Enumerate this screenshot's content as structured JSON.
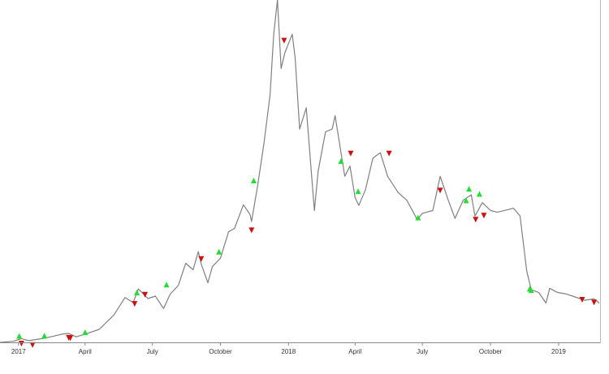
{
  "chart_data": {
    "type": "line",
    "title": "",
    "xlabel": "",
    "ylabel": "",
    "x_range": [
      "2016-12-07",
      "2019-02-25"
    ],
    "y_range": [
      0,
      100
    ],
    "y_axis_shown": false,
    "grid": false,
    "legend": "none",
    "x_ticks": [
      {
        "date": "2017-01-01",
        "label": "2017"
      },
      {
        "date": "2017-04-01",
        "label": "April"
      },
      {
        "date": "2017-07-01",
        "label": "July"
      },
      {
        "date": "2017-10-01",
        "label": "October"
      },
      {
        "date": "2018-01-01",
        "label": "2018"
      },
      {
        "date": "2018-04-01",
        "label": "April"
      },
      {
        "date": "2018-07-01",
        "label": "July"
      },
      {
        "date": "2018-10-01",
        "label": "October"
      },
      {
        "date": "2019-01-01",
        "label": "2019"
      }
    ],
    "series": [
      {
        "color": "#808080",
        "points": [
          [
            "2016-12-07",
            0.0
          ],
          [
            "2016-12-25",
            0.3
          ],
          [
            "2017-01-05",
            1.1
          ],
          [
            "2017-01-15",
            0.5
          ],
          [
            "2017-02-05",
            1.2
          ],
          [
            "2017-03-01",
            2.4
          ],
          [
            "2017-03-10",
            2.6
          ],
          [
            "2017-03-20",
            1.6
          ],
          [
            "2017-04-01",
            2.4
          ],
          [
            "2017-04-20",
            3.8
          ],
          [
            "2017-05-10",
            8.0
          ],
          [
            "2017-05-25",
            13.1
          ],
          [
            "2017-06-05",
            11.6
          ],
          [
            "2017-06-12",
            15.6
          ],
          [
            "2017-06-25",
            12.8
          ],
          [
            "2017-07-05",
            13.5
          ],
          [
            "2017-07-16",
            9.9
          ],
          [
            "2017-07-25",
            14.1
          ],
          [
            "2017-08-05",
            16.6
          ],
          [
            "2017-08-15",
            23.1
          ],
          [
            "2017-08-25",
            21.2
          ],
          [
            "2017-09-01",
            26.5
          ],
          [
            "2017-09-05",
            22.9
          ],
          [
            "2017-09-14",
            17.4
          ],
          [
            "2017-09-20",
            22.1
          ],
          [
            "2017-10-01",
            24.6
          ],
          [
            "2017-10-12",
            32.3
          ],
          [
            "2017-10-20",
            33.3
          ],
          [
            "2017-11-01",
            40.2
          ],
          [
            "2017-11-10",
            37.3
          ],
          [
            "2017-11-12",
            35.3
          ],
          [
            "2017-11-20",
            45.5
          ],
          [
            "2017-11-29",
            58.5
          ],
          [
            "2017-12-07",
            72.3
          ],
          [
            "2017-12-12",
            90.0
          ],
          [
            "2017-12-17",
            100.0
          ],
          [
            "2017-12-22",
            80.0
          ],
          [
            "2017-12-27",
            84.6
          ],
          [
            "2018-01-06",
            90.0
          ],
          [
            "2018-01-10",
            83.1
          ],
          [
            "2018-01-16",
            62.3
          ],
          [
            "2018-01-25",
            68.5
          ],
          [
            "2018-02-01",
            49.2
          ],
          [
            "2018-02-05",
            38.5
          ],
          [
            "2018-02-10",
            50.0
          ],
          [
            "2018-02-20",
            61.5
          ],
          [
            "2018-03-01",
            62.3
          ],
          [
            "2018-03-05",
            66.2
          ],
          [
            "2018-03-18",
            48.5
          ],
          [
            "2018-03-25",
            51.5
          ],
          [
            "2018-04-01",
            42.3
          ],
          [
            "2018-04-06",
            40.0
          ],
          [
            "2018-04-15",
            44.6
          ],
          [
            "2018-04-25",
            53.8
          ],
          [
            "2018-05-05",
            55.4
          ],
          [
            "2018-05-15",
            48.5
          ],
          [
            "2018-05-29",
            43.8
          ],
          [
            "2018-06-10",
            41.5
          ],
          [
            "2018-06-24",
            35.8
          ],
          [
            "2018-07-01",
            37.7
          ],
          [
            "2018-07-15",
            38.5
          ],
          [
            "2018-07-25",
            48.5
          ],
          [
            "2018-08-05",
            41.5
          ],
          [
            "2018-08-14",
            36.2
          ],
          [
            "2018-08-25",
            41.5
          ],
          [
            "2018-09-05",
            43.1
          ],
          [
            "2018-09-10",
            36.9
          ],
          [
            "2018-09-20",
            40.8
          ],
          [
            "2018-10-01",
            38.5
          ],
          [
            "2018-10-10",
            38.0
          ],
          [
            "2018-10-25",
            38.8
          ],
          [
            "2018-11-01",
            39.2
          ],
          [
            "2018-11-10",
            36.9
          ],
          [
            "2018-11-19",
            20.8
          ],
          [
            "2018-11-25",
            15.4
          ],
          [
            "2018-12-05",
            14.6
          ],
          [
            "2018-12-15",
            11.5
          ],
          [
            "2018-12-20",
            15.8
          ],
          [
            "2018-12-30",
            14.6
          ],
          [
            "2019-01-10",
            14.2
          ],
          [
            "2019-01-20",
            13.5
          ],
          [
            "2019-02-05",
            12.3
          ],
          [
            "2019-02-18",
            12.7
          ],
          [
            "2019-02-25",
            11.5
          ]
        ]
      }
    ],
    "markers": [
      {
        "date": "2017-01-02",
        "value": 0.8,
        "kind": "buy",
        "color": "#22dd33"
      },
      {
        "date": "2017-01-05",
        "value": 0.7,
        "kind": "sell",
        "color": "#cc1111"
      },
      {
        "date": "2017-01-20",
        "value": 0.3,
        "kind": "sell",
        "color": "#cc1111"
      },
      {
        "date": "2017-02-05",
        "value": 0.9,
        "kind": "buy",
        "color": "#22dd33"
      },
      {
        "date": "2017-03-10",
        "value": 2.4,
        "kind": "sell",
        "color": "#cc1111"
      },
      {
        "date": "2017-03-12",
        "value": 2.3,
        "kind": "sell",
        "color": "#cc1111"
      },
      {
        "date": "2017-04-01",
        "value": 1.9,
        "kind": "buy",
        "color": "#22dd33"
      },
      {
        "date": "2017-06-07",
        "value": 12.3,
        "kind": "sell",
        "color": "#cc1111"
      },
      {
        "date": "2017-06-10",
        "value": 13.5,
        "kind": "buy",
        "color": "#22dd33"
      },
      {
        "date": "2017-06-21",
        "value": 15.0,
        "kind": "sell",
        "color": "#cc1111"
      },
      {
        "date": "2017-07-20",
        "value": 15.8,
        "kind": "buy",
        "color": "#22dd33"
      },
      {
        "date": "2017-09-05",
        "value": 25.4,
        "kind": "sell",
        "color": "#cc1111"
      },
      {
        "date": "2017-09-29",
        "value": 25.4,
        "kind": "buy",
        "color": "#22dd33"
      },
      {
        "date": "2017-11-12",
        "value": 33.8,
        "kind": "sell",
        "color": "#cc1111"
      },
      {
        "date": "2017-11-15",
        "value": 46.2,
        "kind": "buy",
        "color": "#22dd33"
      },
      {
        "date": "2017-12-26",
        "value": 89.2,
        "kind": "sell",
        "color": "#cc1111"
      },
      {
        "date": "2018-03-13",
        "value": 51.9,
        "kind": "buy",
        "color": "#22dd33"
      },
      {
        "date": "2018-03-26",
        "value": 56.2,
        "kind": "sell",
        "color": "#cc1111"
      },
      {
        "date": "2018-04-05",
        "value": 43.1,
        "kind": "buy",
        "color": "#22dd33"
      },
      {
        "date": "2018-05-17",
        "value": 56.2,
        "kind": "sell",
        "color": "#cc1111"
      },
      {
        "date": "2018-06-25",
        "value": 35.4,
        "kind": "buy",
        "color": "#22dd33"
      },
      {
        "date": "2018-07-25",
        "value": 45.4,
        "kind": "sell",
        "color": "#cc1111"
      },
      {
        "date": "2018-08-29",
        "value": 40.4,
        "kind": "buy",
        "color": "#22dd33"
      },
      {
        "date": "2018-09-02",
        "value": 43.8,
        "kind": "buy",
        "color": "#22dd33"
      },
      {
        "date": "2018-09-11",
        "value": 36.9,
        "kind": "sell",
        "color": "#cc1111"
      },
      {
        "date": "2018-09-16",
        "value": 42.3,
        "kind": "buy",
        "color": "#22dd33"
      },
      {
        "date": "2018-09-22",
        "value": 38.1,
        "kind": "sell",
        "color": "#cc1111"
      },
      {
        "date": "2018-11-23",
        "value": 14.6,
        "kind": "buy",
        "color": "#22dd33"
      },
      {
        "date": "2018-11-25",
        "value": 14.2,
        "kind": "buy",
        "color": "#22dd33"
      },
      {
        "date": "2019-02-02",
        "value": 13.5,
        "kind": "sell",
        "color": "#cc1111"
      },
      {
        "date": "2019-02-18",
        "value": 12.7,
        "kind": "sell",
        "color": "#cc1111"
      }
    ]
  }
}
